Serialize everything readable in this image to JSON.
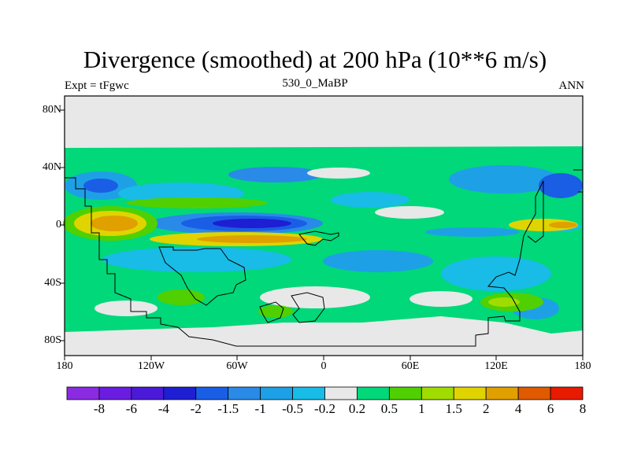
{
  "chart_data": {
    "type": "heatmap",
    "title": "Divergence (smoothed) at 200 hPa (10**6 m/s)",
    "subtitle_left": "Expt = tFgwc",
    "subtitle_center": "530_0_MaBP",
    "subtitle_right": "ANN",
    "x_ticks": [
      "180",
      "120W",
      "60W",
      "0",
      "60E",
      "120E",
      "180"
    ],
    "y_ticks": [
      "80N",
      "40N",
      "0",
      "40S",
      "80S"
    ],
    "xlim": [
      -180,
      180
    ],
    "ylim": [
      -90,
      90
    ],
    "colorbar_labels": [
      "-8",
      "-6",
      "-4",
      "-2",
      "-1.5",
      "-1",
      "-0.5",
      "-0.2",
      "0.2",
      "0.5",
      "1",
      "1.5",
      "2",
      "4",
      "6",
      "8"
    ],
    "colorbar_colors": [
      "#8a2be2",
      "#6a1de0",
      "#4a1ad8",
      "#1e1ed2",
      "#1a5ee6",
      "#2a8ae8",
      "#1ea0e6",
      "#18bce6",
      "#e8e8e8",
      "#00d87a",
      "#50d000",
      "#a0dc00",
      "#e0d400",
      "#e0a000",
      "#e05a00",
      "#e81a00"
    ]
  },
  "colors": {
    "missing": "#e8e8e8",
    "band": "#00d87a"
  }
}
